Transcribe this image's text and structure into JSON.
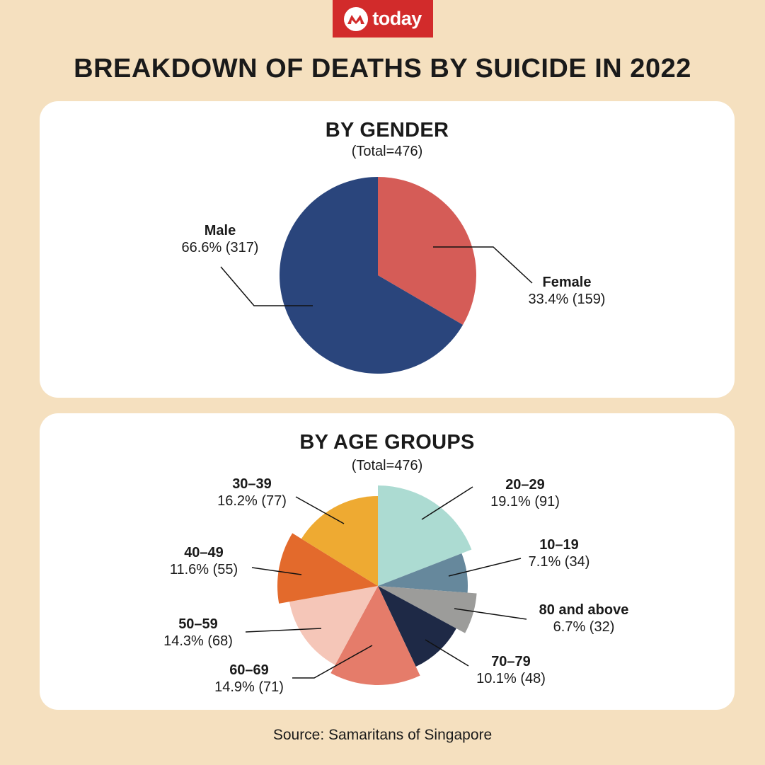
{
  "brand": {
    "logo_text": "today",
    "color": "#d22b2b",
    "icon": "mediacorp-logo-icon"
  },
  "title": "BREAKDOWN OF DEATHS BY SUICIDE IN 2022",
  "source": "Source: Samaritans of Singapore",
  "chart_data": [
    {
      "type": "pie",
      "title": "BY GENDER",
      "subtitle": "(Total=476)",
      "total": 476,
      "slices": [
        {
          "name": "Female",
          "percent": 33.4,
          "value": 159,
          "label": "33.4% (159)",
          "color": "#d55c57"
        },
        {
          "name": "Male",
          "percent": 66.6,
          "value": 317,
          "label": "66.6% (317)",
          "color": "#2a457c"
        }
      ]
    },
    {
      "type": "pie",
      "title": "BY AGE GROUPS",
      "subtitle": "(Total=476)",
      "total": 476,
      "slices": [
        {
          "name": "20–29",
          "percent": 19.1,
          "value": 91,
          "label": "19.1% (91)",
          "color": "#acdbd2"
        },
        {
          "name": "10–19",
          "percent": 7.1,
          "value": 34,
          "label": "7.1% (34)",
          "color": "#66889c"
        },
        {
          "name": "80 and above",
          "percent": 6.7,
          "value": 32,
          "label": "6.7% (32)",
          "color": "#9c9c9a"
        },
        {
          "name": "70–79",
          "percent": 10.1,
          "value": 48,
          "label": "10.1% (48)",
          "color": "#1e2946"
        },
        {
          "name": "60–69",
          "percent": 14.9,
          "value": 71,
          "label": "14.9% (71)",
          "color": "#e57c6a"
        },
        {
          "name": "50–59",
          "percent": 14.3,
          "value": 68,
          "label": "14.3% (68)",
          "color": "#f5c6b8"
        },
        {
          "name": "40–49",
          "percent": 11.6,
          "value": 55,
          "label": "11.6% (55)",
          "color": "#e36a2c"
        },
        {
          "name": "30–39",
          "percent": 16.2,
          "value": 77,
          "label": "16.2% (77)",
          "color": "#eeaa32"
        }
      ]
    }
  ]
}
